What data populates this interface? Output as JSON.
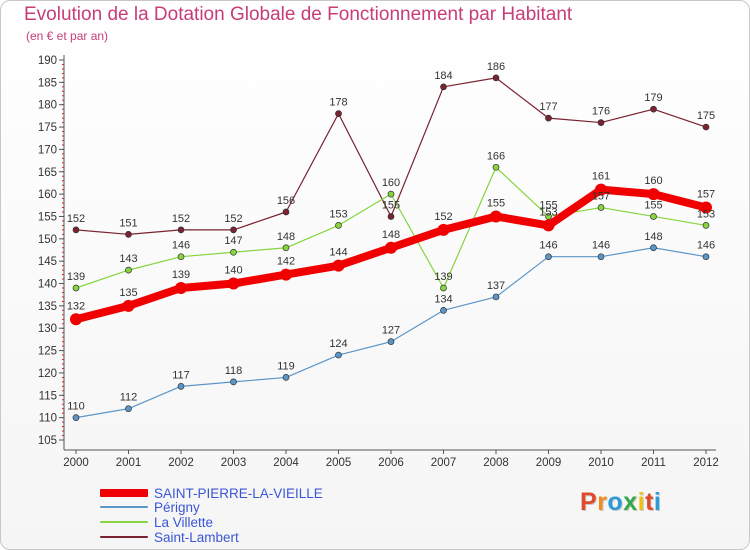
{
  "header": {
    "title": "Evolution de la Dotation Globale de Fonctionnement par Habitant",
    "subtitle": "(en € et par an)"
  },
  "brand": {
    "text": "Proxiti",
    "colors": [
      "#e04a2c",
      "#f28c1e",
      "#2a9bd8",
      "#34a84a",
      "#f2c10e",
      "#e04a2c",
      "#2a9bd8"
    ]
  },
  "chart_data": {
    "type": "line",
    "title": "Evolution de la Dotation Globale de Fonctionnement par Habitant",
    "subtitle": "(en € et par an)",
    "xlabel": "",
    "ylabel": "",
    "ylim": [
      105,
      190
    ],
    "ytick_step": 5,
    "yticks": [
      "105",
      "110",
      "115",
      "120",
      "125",
      "130",
      "135",
      "140",
      "145",
      "150",
      "155",
      "160",
      "165",
      "170",
      "175",
      "180",
      "185",
      "190"
    ],
    "grid": false,
    "legend_position": "bottom-left",
    "categories": [
      "2000",
      "2001",
      "2002",
      "2003",
      "2004",
      "2005",
      "2006",
      "2007",
      "2008",
      "2009",
      "2010",
      "2011",
      "2012"
    ],
    "series": [
      {
        "name": "Saint-Lambert",
        "color": "#7a2230",
        "values": [
          152,
          151,
          152,
          152,
          156,
          178,
          155,
          184,
          186,
          177,
          176,
          179,
          175
        ]
      },
      {
        "name": "La Villette",
        "color": "#86d43e",
        "values": [
          139,
          143,
          146,
          147,
          148,
          153,
          160,
          139,
          166,
          155,
          157,
          155,
          153
        ]
      },
      {
        "name": "Périgny",
        "color": "#5b96c8",
        "values": [
          110,
          112,
          117,
          118,
          119,
          124,
          127,
          134,
          137,
          146,
          146,
          148,
          146
        ]
      },
      {
        "name": "SAINT-PIERRE-LA-VIEILLE",
        "color": "#f00000",
        "values": [
          132,
          135,
          139,
          140,
          142,
          144,
          148,
          152,
          155,
          153,
          161,
          160,
          157
        ]
      }
    ]
  },
  "legend": {
    "items": [
      {
        "label": "SAINT-PIERRE-LA-VIEILLE",
        "color": "#f00000"
      },
      {
        "label": "Périgny",
        "color": "#5b96c8"
      },
      {
        "label": "La Villette",
        "color": "#86d43e"
      },
      {
        "label": "Saint-Lambert",
        "color": "#7a2230"
      }
    ]
  }
}
